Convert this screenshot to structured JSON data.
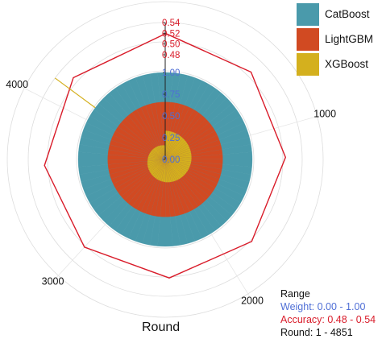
{
  "chart_data": {
    "type": "polar_area",
    "xlabel": "Round",
    "round_range": [
      1,
      4851
    ],
    "angle_ticks": [
      1000,
      2000,
      3000,
      4000
    ],
    "highlight_round": 4130,
    "weight_axis": {
      "range": [
        0,
        1
      ],
      "ticks": [
        "0.00",
        "0.25",
        "0.50",
        "0.75",
        "1.00"
      ]
    },
    "accuracy_axis": {
      "range": [
        0.48,
        0.54
      ],
      "ticks": [
        "0.48",
        "0.50",
        "0.52",
        "0.54"
      ]
    },
    "series": [
      {
        "name": "CatBoost",
        "color": "#4a9aab",
        "weight_values": [
          0.34,
          0.34,
          0.34,
          0.34,
          0.34
        ]
      },
      {
        "name": "LightGBM",
        "color": "#d14a22",
        "weight_values": [
          0.33,
          0.36,
          0.4,
          0.46,
          0.5
        ]
      },
      {
        "name": "XGBoost",
        "color": "#d4b01e",
        "weight_values": [
          0.33,
          0.3,
          0.26,
          0.2,
          0.16
        ]
      }
    ],
    "accuracy_line": {
      "name": "Accuracy",
      "color": "#d91c2a",
      "rounds": [
        1,
        600,
        1200,
        1800,
        2400,
        3000,
        3600,
        4200,
        4851
      ],
      "values": [
        0.52,
        0.513,
        0.509,
        0.507,
        0.506,
        0.507,
        0.51,
        0.514,
        0.519
      ]
    },
    "info_box": {
      "title": "Range",
      "weight": "Weight: 0.00 - 1.00",
      "accuracy": "Accuracy: 0.48 - 0.54",
      "round": "Round: 1 - 4851"
    },
    "info_colors": {
      "weight": "#4f6fd6",
      "accuracy": "#d91c2a",
      "round": "#111111"
    }
  }
}
